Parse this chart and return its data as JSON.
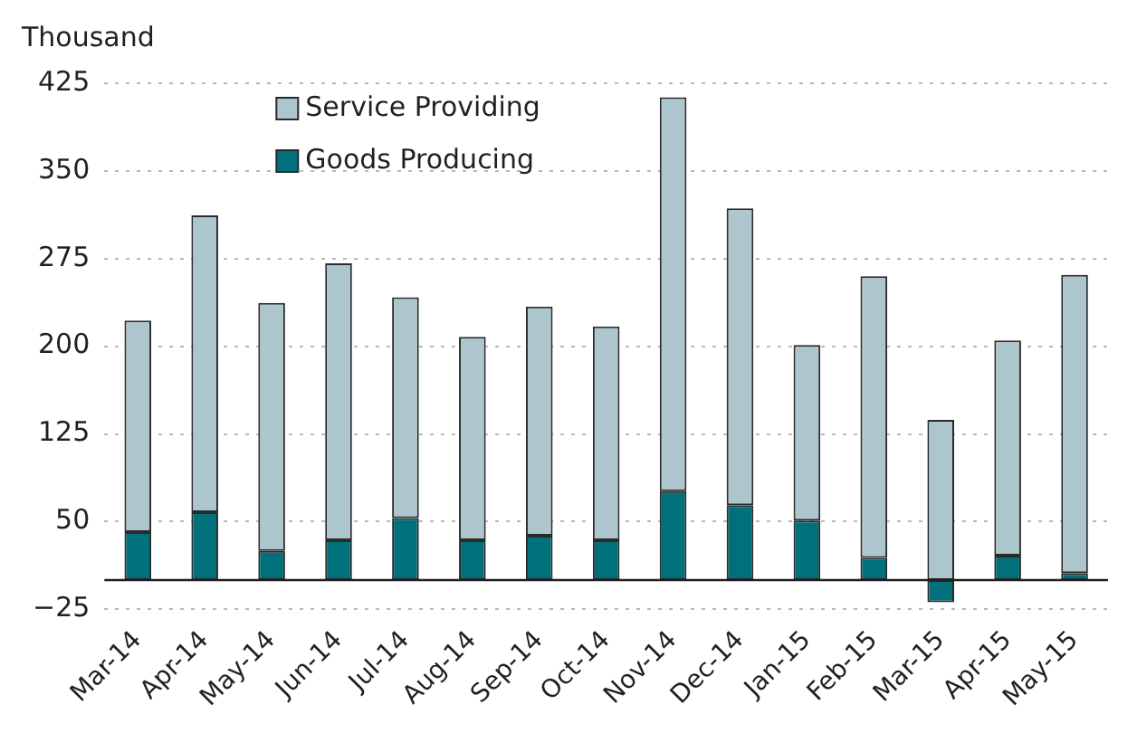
{
  "chart_data": {
    "type": "bar",
    "ylabel": "Thousand",
    "stacked": true,
    "categories": [
      "Mar-14",
      "Apr-14",
      "May-14",
      "Jun-14",
      "Jul-14",
      "Aug-14",
      "Sep-14",
      "Oct-14",
      "Nov-14",
      "Dec-14",
      "Jan-15",
      "Feb-15",
      "Mar-15",
      "Apr-15",
      "May-15"
    ],
    "series": [
      {
        "name": "Goods Producing",
        "color": "#00717b",
        "values": [
          41,
          58,
          25,
          34,
          53,
          34,
          38,
          34,
          76,
          64,
          51,
          19,
          -19,
          21,
          6
        ]
      },
      {
        "name": "Service Providing",
        "color": "#adc5cc",
        "values": [
          181,
          254,
          212,
          237,
          189,
          174,
          196,
          183,
          337,
          254,
          150,
          241,
          137,
          184,
          255
        ]
      }
    ],
    "ylim": [
      -25,
      425
    ],
    "yticks": [
      -25,
      50,
      125,
      200,
      275,
      350,
      425
    ],
    "grid": "y",
    "legend": "top left"
  }
}
